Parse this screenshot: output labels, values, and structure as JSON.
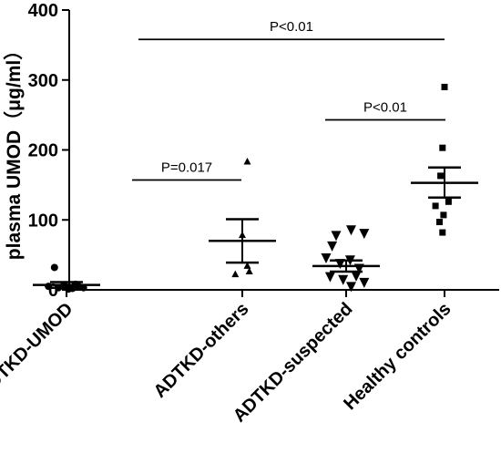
{
  "chart_data": {
    "type": "scatter",
    "ylabel": "plasma UMOD（μg/ml）",
    "ylim": [
      0,
      400
    ],
    "yticks": [
      0,
      100,
      200,
      300,
      400
    ],
    "categories": [
      "ADTKD-UMOD",
      "ADTKD-others",
      "ADTKD-suspected",
      "Healthy controls"
    ],
    "series": [
      {
        "marker": "circle",
        "mean": 7,
        "sem_low": 3,
        "sem_high": 11,
        "points": [
          [
            -0.12,
            32
          ],
          [
            -0.18,
            5
          ],
          [
            -0.08,
            3
          ],
          [
            0.0,
            4
          ],
          [
            0.06,
            2
          ],
          [
            0.12,
            5
          ],
          [
            0.17,
            3
          ],
          [
            -0.03,
            6
          ],
          [
            0.09,
            8
          ],
          [
            0.02,
            1
          ]
        ]
      },
      {
        "marker": "triangle-up",
        "mean": 70,
        "sem_low": 39,
        "sem_high": 101,
        "points": [
          [
            0.05,
            183
          ],
          [
            0.0,
            78
          ],
          [
            0.05,
            34
          ],
          [
            -0.07,
            22
          ],
          [
            0.07,
            26
          ]
        ]
      },
      {
        "marker": "triangle-down",
        "mean": 34,
        "sem_low": 26,
        "sem_high": 42,
        "points": [
          [
            -0.1,
            77
          ],
          [
            0.05,
            85
          ],
          [
            0.18,
            80
          ],
          [
            -0.14,
            62
          ],
          [
            -0.2,
            45
          ],
          [
            0.04,
            42
          ],
          [
            -0.06,
            37
          ],
          [
            0.13,
            30
          ],
          [
            -0.16,
            18
          ],
          [
            0.1,
            19
          ],
          [
            -0.03,
            14
          ],
          [
            0.18,
            10
          ],
          [
            0.05,
            4
          ]
        ]
      },
      {
        "marker": "square",
        "mean": 153,
        "sem_low": 132,
        "sem_high": 175,
        "points": [
          [
            0.0,
            290
          ],
          [
            -0.02,
            203
          ],
          [
            -0.04,
            163
          ],
          [
            0.04,
            126
          ],
          [
            -0.09,
            120
          ],
          [
            -0.01,
            107
          ],
          [
            -0.05,
            97
          ],
          [
            -0.02,
            82
          ]
        ]
      }
    ],
    "annotations": [
      {
        "text": "P<0.01",
        "from": 0,
        "to": 3,
        "y": 358
      },
      {
        "text": "P=0.017",
        "from": 0,
        "to": 1,
        "y": 157
      },
      {
        "text": "P<0.01",
        "from": 2,
        "to": 3,
        "y": 243
      }
    ],
    "grid": false,
    "legend": "none"
  }
}
